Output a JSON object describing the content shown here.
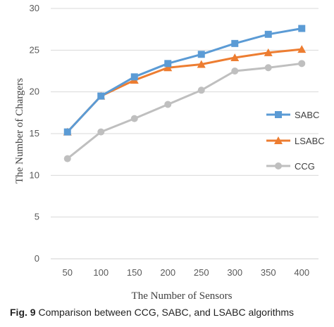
{
  "chart_data": {
    "type": "line",
    "title": "",
    "xlabel": "The Number of Sensors",
    "ylabel": "The Number of Chargers",
    "categories": [
      "50",
      "100",
      "150",
      "200",
      "250",
      "300",
      "350",
      "400"
    ],
    "ylim": [
      0,
      30
    ],
    "yticks": [
      "0",
      "5",
      "10",
      "15",
      "20",
      "25",
      "30"
    ],
    "grid": "horizontal",
    "legend_position": "right",
    "series": [
      {
        "name": "SABC",
        "color": "#5b9bd5",
        "marker": "square",
        "values": [
          15.2,
          19.5,
          21.8,
          23.4,
          24.5,
          25.8,
          26.9,
          27.6
        ]
      },
      {
        "name": "LSABC",
        "color": "#ed7d31",
        "marker": "triangle",
        "values": [
          15.2,
          19.5,
          21.4,
          22.9,
          23.3,
          24.1,
          24.7,
          25.1
        ]
      },
      {
        "name": "CCG",
        "color": "#bfbfbf",
        "marker": "circle",
        "values": [
          12.0,
          15.2,
          16.8,
          18.5,
          20.2,
          22.5,
          22.9,
          23.4
        ]
      }
    ]
  },
  "caption": {
    "label": "Fig. 9",
    "text": " Comparison between CCG, SABC, and LSABC algorithms"
  }
}
